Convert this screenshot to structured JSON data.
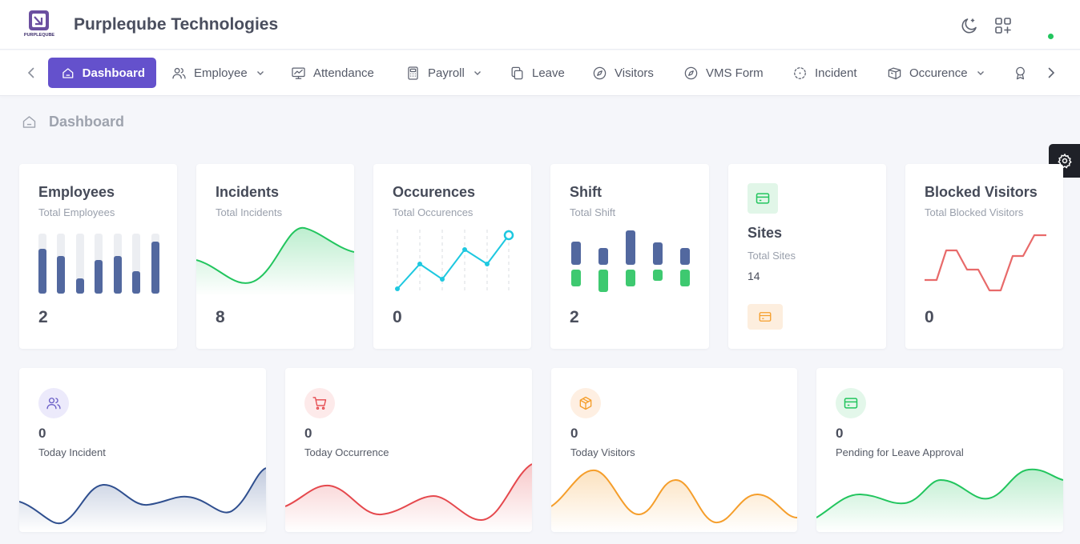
{
  "app": {
    "brand": "Purpleqube Technologies",
    "logo_text": "PURPLEQUBE"
  },
  "nav": {
    "items": [
      {
        "label": "Dashboard",
        "icon": "home-icon"
      },
      {
        "label": "Employee",
        "icon": "users-icon"
      },
      {
        "label": "Attendance",
        "icon": "monitor-chart-icon"
      },
      {
        "label": "Payroll",
        "icon": "calculator-icon"
      },
      {
        "label": "Leave",
        "icon": "copy-icon"
      },
      {
        "label": "Visitors",
        "icon": "compass-icon"
      },
      {
        "label": "VMS Form",
        "icon": "compass-icon"
      },
      {
        "label": "Incident",
        "icon": "focus-icon"
      },
      {
        "label": "Occurence",
        "icon": "boxes-icon"
      }
    ]
  },
  "breadcrumb": {
    "label": "Dashboard"
  },
  "stats": [
    {
      "title": "Employees",
      "subtitle": "Total Employees",
      "value": "2"
    },
    {
      "title": "Incidents",
      "subtitle": "Total Incidents",
      "value": "8"
    },
    {
      "title": "Occurences",
      "subtitle": "Total Occurences",
      "value": "0"
    },
    {
      "title": "Shift",
      "subtitle": "Total Shift",
      "value": "2"
    },
    {
      "title": "Sites",
      "subtitle": "Total Sites",
      "value": "14"
    },
    {
      "title": "Blocked Visitors",
      "subtitle": "Total Blocked Visitors",
      "value": "0"
    }
  ],
  "bottom": [
    {
      "value": "0",
      "label": "Today Incident",
      "color": "#2f4f8f",
      "bubble": "#eceafb",
      "icon": "users-icon"
    },
    {
      "value": "0",
      "label": "Today Occurrence",
      "color": "#e5484d",
      "bubble": "#fdeaea",
      "icon": "cart-icon"
    },
    {
      "value": "0",
      "label": "Today Visitors",
      "color": "#f59e2b",
      "bubble": "#feefe2",
      "icon": "box-icon"
    },
    {
      "value": "0",
      "label": "Pending for Leave Approval",
      "color": "#22c55e",
      "bubble": "#e3f7ea",
      "icon": "card-icon"
    }
  ],
  "colors": {
    "accent": "#6451cc",
    "blue": "#5470a8",
    "green": "#22c55e",
    "cyan": "#1ec8e0",
    "red": "#e86a6a"
  }
}
